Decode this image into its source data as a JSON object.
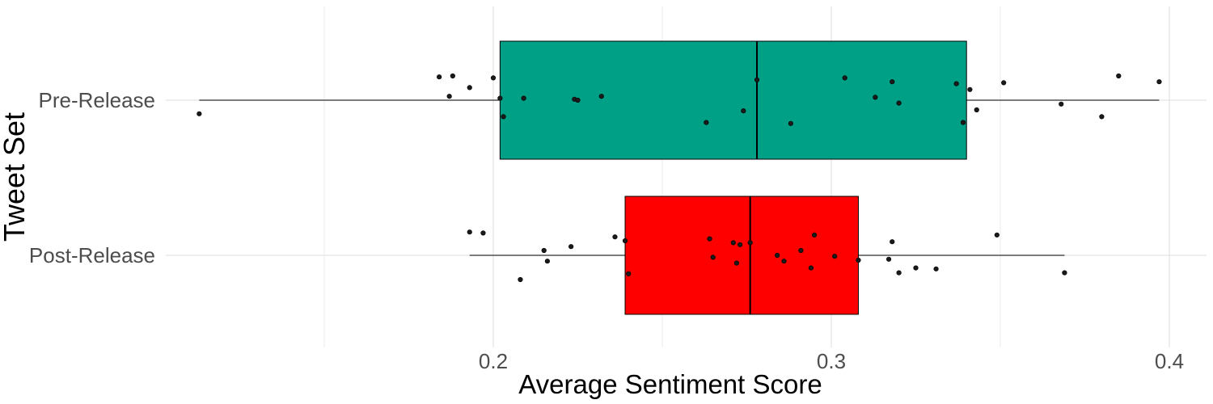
{
  "chart_data": {
    "type": "boxplot",
    "orientation": "horizontal",
    "title": "",
    "xlabel": "Average Sentiment Score",
    "ylabel": "Tweet Set",
    "x_ticks": [
      0.2,
      0.3,
      0.4
    ],
    "x_tick_labels": [
      "0.2",
      "0.3",
      "0.4"
    ],
    "xlim": [
      0.1,
      0.41
    ],
    "grid": true,
    "legend": "none",
    "categories": [
      "Pre-Release",
      "Post-Release"
    ],
    "series": [
      {
        "category": "Pre-Release",
        "color": "#00A087",
        "whisker_low": 0.113,
        "q1": 0.202,
        "median": 0.278,
        "q3": 0.34,
        "whisker_high": 0.397,
        "points": [
          {
            "x": 0.113,
            "jitter": -0.14
          },
          {
            "x": 0.184,
            "jitter": 0.24
          },
          {
            "x": 0.188,
            "jitter": 0.25
          },
          {
            "x": 0.187,
            "jitter": 0.04
          },
          {
            "x": 0.193,
            "jitter": 0.13
          },
          {
            "x": 0.2,
            "jitter": 0.23
          },
          {
            "x": 0.202,
            "jitter": 0.02
          },
          {
            "x": 0.203,
            "jitter": -0.17
          },
          {
            "x": 0.209,
            "jitter": 0.02
          },
          {
            "x": 0.224,
            "jitter": 0.01
          },
          {
            "x": 0.225,
            "jitter": 0.0
          },
          {
            "x": 0.232,
            "jitter": 0.04
          },
          {
            "x": 0.263,
            "jitter": -0.23
          },
          {
            "x": 0.274,
            "jitter": -0.11
          },
          {
            "x": 0.278,
            "jitter": 0.21
          },
          {
            "x": 0.288,
            "jitter": -0.24
          },
          {
            "x": 0.304,
            "jitter": 0.23
          },
          {
            "x": 0.313,
            "jitter": 0.03
          },
          {
            "x": 0.318,
            "jitter": 0.19
          },
          {
            "x": 0.32,
            "jitter": -0.03
          },
          {
            "x": 0.337,
            "jitter": 0.17
          },
          {
            "x": 0.339,
            "jitter": -0.23
          },
          {
            "x": 0.341,
            "jitter": 0.11
          },
          {
            "x": 0.343,
            "jitter": -0.1
          },
          {
            "x": 0.351,
            "jitter": 0.18
          },
          {
            "x": 0.368,
            "jitter": -0.04
          },
          {
            "x": 0.38,
            "jitter": -0.17
          },
          {
            "x": 0.385,
            "jitter": 0.25
          },
          {
            "x": 0.397,
            "jitter": 0.19
          }
        ]
      },
      {
        "category": "Post-Release",
        "color": "#FF0000",
        "whisker_low": 0.193,
        "q1": 0.239,
        "median": 0.276,
        "q3": 0.308,
        "whisker_high": 0.369,
        "points": [
          {
            "x": 0.193,
            "jitter": 0.24
          },
          {
            "x": 0.197,
            "jitter": 0.23
          },
          {
            "x": 0.208,
            "jitter": -0.25
          },
          {
            "x": 0.215,
            "jitter": 0.05
          },
          {
            "x": 0.216,
            "jitter": -0.06
          },
          {
            "x": 0.223,
            "jitter": 0.09
          },
          {
            "x": 0.236,
            "jitter": 0.19
          },
          {
            "x": 0.239,
            "jitter": 0.15
          },
          {
            "x": 0.24,
            "jitter": -0.19
          },
          {
            "x": 0.264,
            "jitter": 0.17
          },
          {
            "x": 0.265,
            "jitter": -0.02
          },
          {
            "x": 0.271,
            "jitter": 0.13
          },
          {
            "x": 0.273,
            "jitter": 0.11
          },
          {
            "x": 0.272,
            "jitter": -0.08
          },
          {
            "x": 0.276,
            "jitter": 0.13
          },
          {
            "x": 0.284,
            "jitter": 0.0
          },
          {
            "x": 0.286,
            "jitter": -0.06
          },
          {
            "x": 0.291,
            "jitter": 0.05
          },
          {
            "x": 0.294,
            "jitter": -0.13
          },
          {
            "x": 0.295,
            "jitter": 0.21
          },
          {
            "x": 0.301,
            "jitter": -0.01
          },
          {
            "x": 0.308,
            "jitter": -0.05
          },
          {
            "x": 0.317,
            "jitter": -0.04
          },
          {
            "x": 0.318,
            "jitter": 0.14
          },
          {
            "x": 0.32,
            "jitter": -0.18
          },
          {
            "x": 0.325,
            "jitter": -0.13
          },
          {
            "x": 0.331,
            "jitter": -0.14
          },
          {
            "x": 0.349,
            "jitter": 0.21
          },
          {
            "x": 0.369,
            "jitter": -0.18
          }
        ]
      }
    ]
  }
}
